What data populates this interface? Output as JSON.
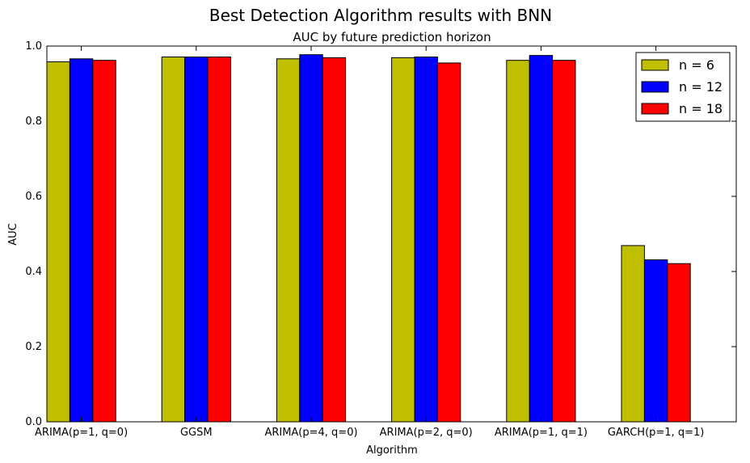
{
  "chart_data": {
    "type": "bar",
    "title": "Best Detection Algorithm results with BNN",
    "subtitle": "AUC by future prediction horizon",
    "xlabel": "Algorithm",
    "ylabel": "AUC",
    "ylim": [
      0,
      1.0
    ],
    "yticks": [
      "0.0",
      "0.2",
      "0.4",
      "0.6",
      "0.8",
      "1.0"
    ],
    "categories": [
      "ARIMA(p=1, q=0)",
      "GGSM",
      "ARIMA(p=4, q=0)",
      "ARIMA(p=2, q=0)",
      "ARIMA(p=1, q=1)",
      "GARCH(p=1, q=1)"
    ],
    "series": [
      {
        "name": "n = 6",
        "color": "#bfbf00",
        "values": [
          0.958,
          0.971,
          0.966,
          0.969,
          0.962,
          0.469
        ]
      },
      {
        "name": "n = 12",
        "color": "#0000ff",
        "values": [
          0.966,
          0.971,
          0.977,
          0.971,
          0.975,
          0.431
        ]
      },
      {
        "name": "n = 18",
        "color": "#ff0000",
        "values": [
          0.962,
          0.971,
          0.969,
          0.955,
          0.962,
          0.421
        ]
      }
    ],
    "legend_position": "top-right",
    "grid": false
  }
}
